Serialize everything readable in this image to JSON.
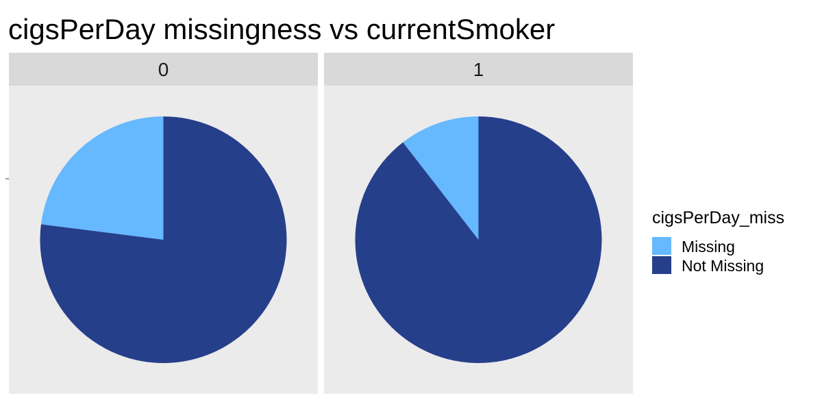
{
  "chart_data": {
    "type": "pie",
    "title": "cigsPerDay missingness vs currentSmoker",
    "facet_variable": "currentSmoker",
    "facets": [
      {
        "label": "0",
        "slices": [
          {
            "category": "Missing",
            "value": 0.23
          },
          {
            "category": "Not Missing",
            "value": 0.77
          }
        ]
      },
      {
        "label": "1",
        "slices": [
          {
            "category": "Missing",
            "value": 0.105
          },
          {
            "category": "Not Missing",
            "value": 0.895
          }
        ]
      }
    ],
    "legend": {
      "title": "cigsPerDay_miss",
      "position": "right",
      "items": [
        {
          "label": "Missing",
          "color": "#66B8FF"
        },
        {
          "label": "Not Missing",
          "color": "#263F8A"
        }
      ]
    },
    "colors": {
      "panel_background": "#EBEBEB",
      "strip_background": "#D9D9D9"
    }
  }
}
